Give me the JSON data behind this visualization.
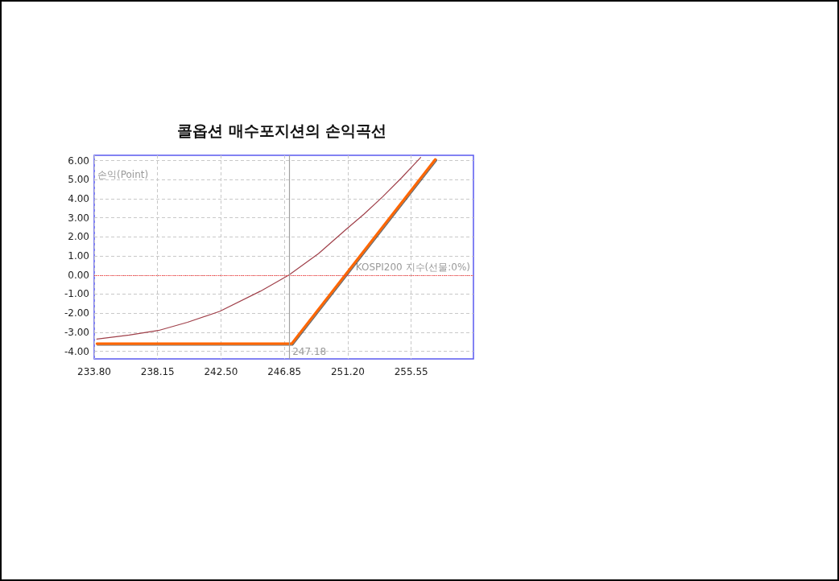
{
  "chart_data": {
    "type": "line",
    "title": "콜옵션 매수포지션의 손익곡선",
    "xlabel": "KOSPI200 지수(선물:0%)",
    "ylabel": "손익(Point)",
    "series": [
      {
        "color": "#a0404a",
        "x": [
          233.98,
          236.2,
          238.2,
          240.2,
          242.4,
          245.2,
          247.16,
          249.2,
          251.1,
          252.3,
          253.6,
          254.9,
          256.2
        ],
        "values": [
          -3.36,
          -3.15,
          -2.91,
          -2.48,
          -1.91,
          -0.85,
          0.0,
          1.13,
          2.41,
          3.19,
          4.11,
          5.11,
          6.17
        ]
      },
      {
        "color": "#ff6600",
        "x": [
          233.98,
          247.34,
          257.2
        ],
        "values": [
          -3.6,
          -3.6,
          6.07
        ]
      }
    ],
    "xlim": [
      233.8,
      259.82
    ],
    "ylim": [
      -4.4,
      6.28
    ],
    "xticks": [
      {
        "value": 233.8,
        "label": "233.80"
      },
      {
        "value": 238.15,
        "label": "238.15"
      },
      {
        "value": 242.5,
        "label": "242.50"
      },
      {
        "value": 246.85,
        "label": "246.85"
      },
      {
        "value": 251.2,
        "label": "251.20"
      },
      {
        "value": 255.55,
        "label": "255.55"
      }
    ],
    "yticks": [
      {
        "value": 6,
        "label": "6.00"
      },
      {
        "value": 5,
        "label": "5.00"
      },
      {
        "value": 4,
        "label": "4.00"
      },
      {
        "value": 3,
        "label": "3.00"
      },
      {
        "value": 2,
        "label": "2.00"
      },
      {
        "value": 1,
        "label": "1.00"
      },
      {
        "value": 0,
        "label": "0.00"
      },
      {
        "value": -1,
        "label": "-1.00"
      },
      {
        "value": -2,
        "label": "-2.00"
      },
      {
        "value": -3,
        "label": "-3.00"
      },
      {
        "value": -4,
        "label": "-4.00"
      }
    ],
    "ref_lines": [
      {
        "axis": "y",
        "value": 0,
        "color": "#ff3030",
        "line_style": "dotted"
      },
      {
        "axis": "x",
        "value": 247.18,
        "label": "247.18",
        "color": "#a0a0a0",
        "line_style": "solid"
      }
    ],
    "grid": true,
    "marker": "none",
    "line_style": "solid"
  }
}
